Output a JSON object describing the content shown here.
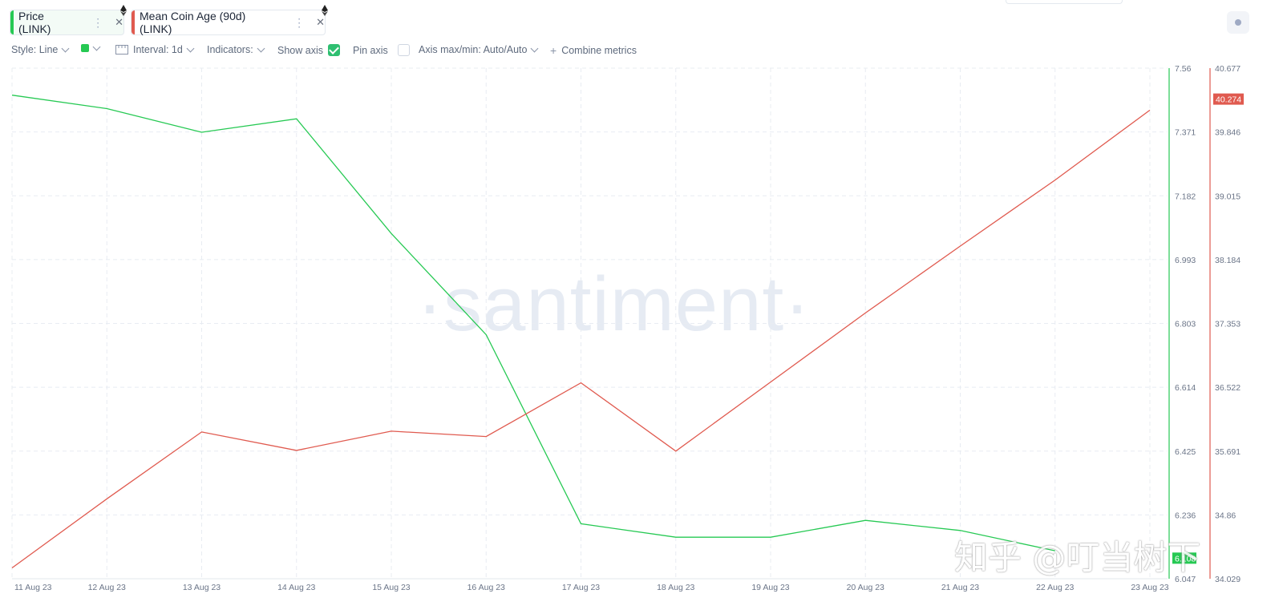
{
  "metrics": [
    {
      "label": "Price (LINK)",
      "color": "#26c953"
    },
    {
      "label": "Mean Coin Age (90d) (LINK)",
      "color": "#e05a4f"
    }
  ],
  "toolbar": {
    "style": "Style: Line",
    "interval": "Interval: 1d",
    "indicators": "Indicators:",
    "show_axis": "Show axis",
    "show_axis_checked": true,
    "pin_axis": "Pin axis",
    "pin_axis_checked": false,
    "axis_maxmin": "Axis max/min: Auto/Auto",
    "combine": "Combine metrics"
  },
  "watermark": "·santiment·",
  "overlay_watermark": "知乎 @叮当树下",
  "chart_data": {
    "type": "line",
    "x": [
      "11 Aug 23",
      "12 Aug 23",
      "13 Aug 23",
      "14 Aug 23",
      "15 Aug 23",
      "16 Aug 23",
      "17 Aug 23",
      "18 Aug 23",
      "19 Aug 23",
      "20 Aug 23",
      "21 Aug 23",
      "22 Aug 23",
      "23 Aug 23"
    ],
    "series": [
      {
        "name": "Price (LINK)",
        "axis": "price",
        "color": "#26c953",
        "values": [
          7.48,
          7.44,
          7.37,
          7.41,
          7.07,
          6.77,
          6.21,
          6.17,
          6.17,
          6.22,
          6.19,
          6.13,
          null
        ]
      },
      {
        "name": "Mean Coin Age (90d) (LINK)",
        "axis": "age",
        "color": "#e05a4f",
        "values": [
          34.17,
          35.07,
          35.94,
          35.7,
          35.95,
          35.88,
          36.58,
          35.69,
          36.59,
          37.49,
          38.36,
          39.22,
          40.13
        ]
      }
    ],
    "axes": {
      "price": {
        "ticks": [
          "7.56",
          "7.371",
          "7.182",
          "6.993",
          "6.803",
          "6.614",
          "6.425",
          "6.236",
          "6.047"
        ],
        "ylim": [
          6.047,
          7.56
        ],
        "current_label": "6.108",
        "current_value": 6.108,
        "color": "#26c953"
      },
      "age": {
        "ticks": [
          "40.677",
          "39.846",
          "39.015",
          "38.184",
          "37.353",
          "36.522",
          "35.691",
          "34.86",
          "34.029"
        ],
        "ylim": [
          34.029,
          40.677
        ],
        "current_label": "40.274",
        "current_value": 40.274,
        "color": "#e05a4f"
      }
    },
    "grid": true
  }
}
